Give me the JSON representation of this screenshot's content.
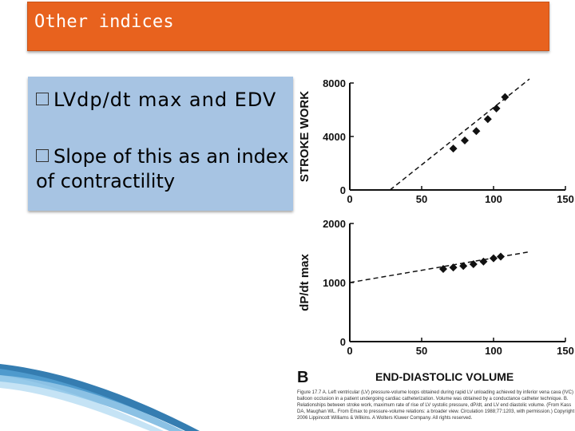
{
  "slide": {
    "title": "Other  indices",
    "bullets": [
      "LVdp/dt max and EDV",
      "Slope of this as an index of contractility"
    ]
  },
  "figure": {
    "panel_label": "B",
    "xlabel": "END-DIASTOLIC VOLUME",
    "caption": "Figure 17.7 A. Left ventricular (LV) pressure-volume loops obtained during rapid LV unloading achieved by inferior vena cava (IVC) balloon occlusion in a patient undergoing cardiac catheterization. Volume was obtained by a conductance catheter technique. B. Relationships between stroke work, maximum rate of rise of LV systolic pressure, dP/dt, and LV end diastolic volume. (From Kass DA, Maughan WL. From Emax to pressure-volume relations: a broader view. Circulation 1988;77:1203, with permission.) Copyright 2006 Lippincott Williams & Wilkins. A Wolters Kluwer Company. All rights reserved."
  },
  "chart_data": [
    {
      "type": "scatter",
      "ylabel": "STROKE WORK",
      "xlim": [
        0,
        150
      ],
      "ylim": [
        0,
        8000
      ],
      "xticks": [
        "0",
        "50",
        "100",
        "150"
      ],
      "yticks": [
        "0",
        "4000",
        "8000"
      ],
      "points": [
        [
          72,
          3100
        ],
        [
          80,
          3700
        ],
        [
          88,
          4400
        ],
        [
          96,
          5300
        ],
        [
          102,
          6100
        ],
        [
          108,
          6950
        ]
      ],
      "fit_line": [
        [
          28,
          0
        ],
        [
          125,
          8300
        ]
      ]
    },
    {
      "type": "scatter",
      "ylabel": "dP/dt max",
      "xlim": [
        0,
        150
      ],
      "ylim": [
        0,
        2000
      ],
      "xticks": [
        "0",
        "50",
        "100",
        "150"
      ],
      "yticks": [
        "0",
        "1000",
        "2000"
      ],
      "points": [
        [
          65,
          1230
        ],
        [
          72,
          1255
        ],
        [
          79,
          1280
        ],
        [
          86,
          1310
        ],
        [
          93,
          1355
        ],
        [
          100,
          1410
        ],
        [
          105,
          1440
        ]
      ],
      "fit_line": [
        [
          0,
          1000
        ],
        [
          125,
          1520
        ]
      ]
    }
  ]
}
